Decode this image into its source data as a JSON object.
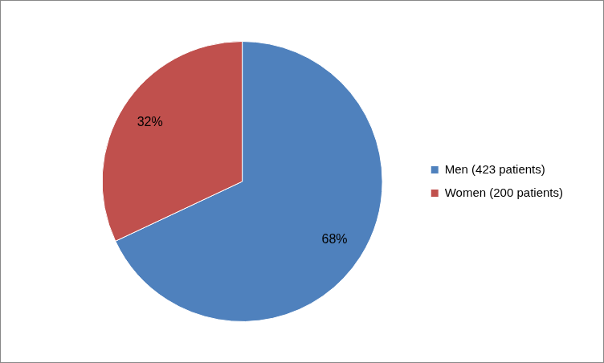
{
  "chart_data": {
    "type": "pie",
    "categories": [
      "Men (423 patients)",
      "Women (200 patients)"
    ],
    "values": [
      68,
      32
    ],
    "value_labels": [
      "68%",
      "32%"
    ],
    "colors": [
      "#4f81bd",
      "#c0504d"
    ],
    "data_labels": true,
    "legend": "right"
  }
}
